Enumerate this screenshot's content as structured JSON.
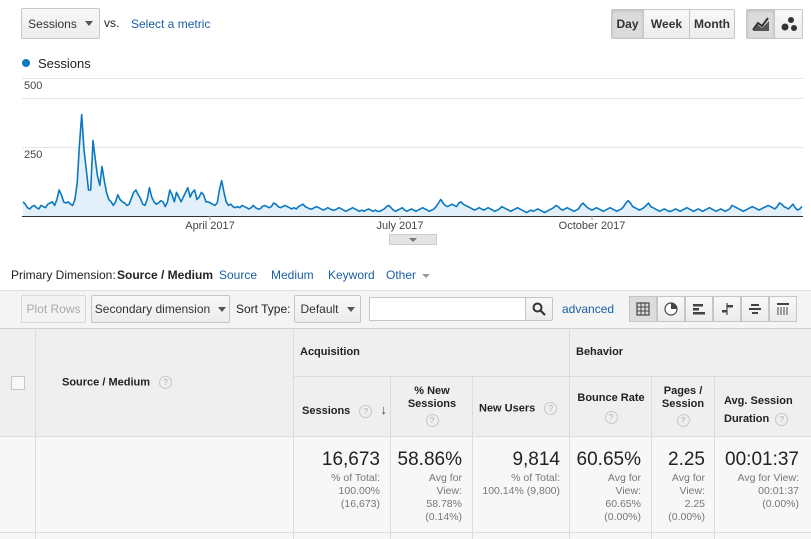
{
  "top": {
    "metric_select": "Sessions",
    "vs_label": "vs.",
    "select_metric_link": "Select a metric",
    "granularity": [
      "Day",
      "Week",
      "Month"
    ],
    "active_granularity": "Day"
  },
  "legend": {
    "series_name": "Sessions",
    "color": "#0b78c1"
  },
  "chart_data": {
    "type": "area",
    "series": [
      {
        "name": "Sessions",
        "values": [
          60,
          50,
          35,
          30,
          40,
          45,
          35,
          30,
          45,
          40,
          35,
          50,
          55,
          60,
          45,
          70,
          110,
          90,
          60,
          55,
          60,
          50,
          45,
          70,
          140,
          300,
          430,
          280,
          200,
          110,
          110,
          320,
          240,
          170,
          130,
          210,
          150,
          100,
          70,
          60,
          45,
          60,
          90,
          70,
          60,
          55,
          45,
          50,
          75,
          100,
          110,
          90,
          75,
          50,
          45,
          70,
          120,
          80,
          60,
          50,
          55,
          65,
          60,
          40,
          60,
          110,
          90,
          60,
          100,
          80,
          60,
          80,
          100,
          120,
          80,
          100,
          110,
          70,
          80,
          100,
          90,
          60,
          60,
          55,
          50,
          45,
          55,
          110,
          150,
          100,
          60,
          45,
          50,
          40,
          35,
          40,
          35,
          45,
          40,
          35,
          30,
          35,
          45,
          35,
          30,
          30,
          40,
          45,
          40,
          35,
          40,
          55,
          50,
          40,
          35,
          40,
          45,
          40,
          35,
          30,
          35,
          30,
          40,
          45,
          50,
          40,
          35,
          30,
          30,
          35,
          40,
          35,
          30,
          25,
          30,
          35,
          30,
          25,
          25,
          30,
          35,
          30,
          25,
          20,
          25,
          30,
          35,
          30,
          25,
          20,
          25,
          20,
          25,
          30,
          25,
          20,
          25,
          20,
          20,
          25,
          30,
          40,
          45,
          35,
          25,
          20,
          25,
          30,
          35,
          25,
          20,
          25,
          30,
          25,
          20,
          25,
          30,
          35,
          30,
          25,
          20,
          25,
          30,
          40,
          55,
          70,
          55,
          45,
          40,
          45,
          50,
          45,
          40,
          55,
          60,
          50,
          45,
          40,
          35,
          30,
          25,
          30,
          35,
          30,
          25,
          30,
          35,
          30,
          25,
          20,
          25,
          30,
          40,
          35,
          30,
          25,
          20,
          25,
          30,
          35,
          30,
          25,
          20,
          15,
          20,
          25,
          20,
          25,
          30,
          25,
          20,
          15,
          20,
          25,
          30,
          35,
          45,
          40,
          30,
          25,
          30,
          35,
          30,
          25,
          20,
          25,
          30,
          45,
          55,
          45,
          35,
          30,
          25,
          30,
          35,
          30,
          25,
          20,
          25,
          30,
          35,
          30,
          25,
          20,
          25,
          30,
          40,
          55,
          65,
          55,
          40,
          35,
          30,
          25,
          30,
          35,
          45,
          55,
          40,
          35,
          30,
          25,
          20,
          25,
          30,
          25,
          20,
          20,
          25,
          30,
          25,
          20,
          25,
          30,
          35,
          30,
          25,
          20,
          25,
          30,
          25,
          20,
          25,
          30,
          35,
          30,
          25,
          20,
          25,
          30,
          25,
          20,
          25,
          30,
          45,
          40,
          35,
          30,
          25,
          20,
          25,
          30,
          35,
          40,
          35,
          30,
          25,
          30,
          35,
          40,
          45,
          40,
          35,
          30,
          40,
          55,
          50,
          40,
          35,
          30,
          40,
          50,
          35,
          25,
          30,
          40
        ]
      }
    ],
    "ylim": [
      0,
      520
    ],
    "yticks": [
      250,
      500
    ],
    "xtick_labels": [
      "April 2017",
      "July 2017",
      "October 2017"
    ]
  },
  "dimension_bar": {
    "label": "Primary Dimension:",
    "active": "Source / Medium",
    "tabs": [
      "Source",
      "Medium",
      "Keyword"
    ],
    "other": "Other"
  },
  "toolbar": {
    "plot_rows": "Plot Rows",
    "secondary_dimension": "Secondary dimension",
    "sort_type_label": "Sort Type:",
    "sort_type_value": "Default",
    "search_placeholder": "",
    "advanced": "advanced"
  },
  "table": {
    "dimension_header": "Source / Medium",
    "group_acquisition": "Acquisition",
    "group_behavior": "Behavior",
    "columns": {
      "sessions": "Sessions",
      "new_sessions": "% New Sessions",
      "new_users": "New Users",
      "bounce_rate": "Bounce Rate",
      "pages_session": "Pages / Session",
      "avg_duration": "Avg. Session Duration"
    },
    "totals": {
      "sessions": {
        "value": "16,673",
        "sub": "% of Total: 100.00% (16,673)"
      },
      "new_sessions": {
        "value": "58.86%",
        "sub": "Avg for View: 58.78% (0.14%)"
      },
      "new_users": {
        "value": "9,814",
        "sub": "% of Total: 100.14% (9,800)"
      },
      "bounce_rate": {
        "value": "60.65%",
        "sub": "Avg for View: 60.65% (0.00%)"
      },
      "pages_session": {
        "value": "2.25",
        "sub": "Avg for View: 2.25 (0.00%)"
      },
      "avg_duration": {
        "value": "00:01:37",
        "sub": "Avg for View: 00:01:37 (0.00%)"
      }
    }
  }
}
